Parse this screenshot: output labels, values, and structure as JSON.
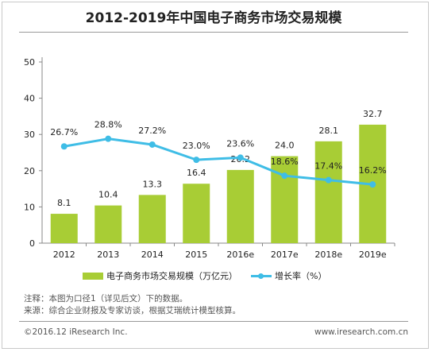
{
  "chart_data": {
    "type": "bar",
    "title": "2012-2019年中国电子商务市场交易规模",
    "categories": [
      "2012",
      "2013",
      "2014",
      "2015",
      "2016e",
      "2017e",
      "2018e",
      "2019e"
    ],
    "series": [
      {
        "name": "电子商务市场交易规模（万亿元）",
        "type": "bar",
        "values": [
          8.1,
          10.4,
          13.3,
          16.4,
          20.2,
          24.0,
          28.1,
          32.7
        ],
        "labels": [
          "8.1",
          "10.4",
          "13.3",
          "16.4",
          "20.2",
          "24.0",
          "28.1",
          "32.7"
        ]
      },
      {
        "name": "增长率（%）",
        "type": "line",
        "values": [
          26.7,
          28.8,
          27.2,
          23.0,
          23.6,
          18.6,
          17.4,
          16.2
        ],
        "labels": [
          "26.7%",
          "28.8%",
          "27.2%",
          "23.0%",
          "23.6%",
          "18.6%",
          "17.4%",
          "16.2%"
        ]
      }
    ],
    "yticks": [
      "0",
      "10",
      "20",
      "30",
      "40",
      "50"
    ],
    "ylim": [
      0,
      50
    ],
    "xlabel": "",
    "ylabel": "",
    "grid": false,
    "legend": "bottom",
    "colors": {
      "bar": "#a8cd35",
      "line": "#3fbde6"
    }
  },
  "notes": {
    "line1": "注释：本图为口径1（详见后文）下的数据。",
    "line2": "来源：综合企业财报及专家访谈，根据艾瑞统计模型核算。"
  },
  "footer": {
    "copyright": "©2016.12 iResearch Inc.",
    "website": "www.iresearch.com.cn"
  }
}
